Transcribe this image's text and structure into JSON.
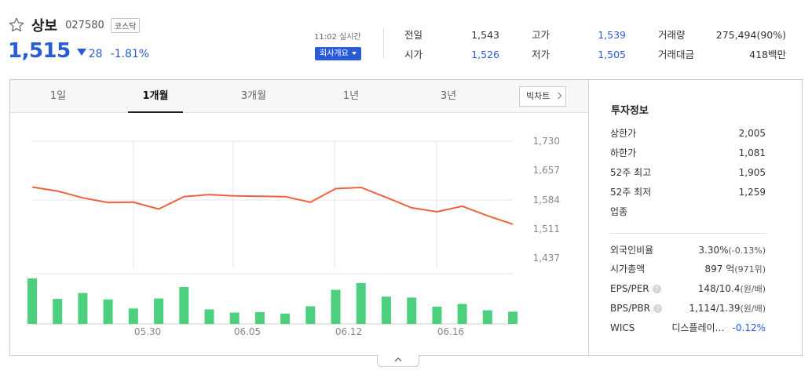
{
  "stock": {
    "name": "상보",
    "code": "027580",
    "market": "코스닥",
    "price": "1,515",
    "change": "28",
    "change_pct": "-1.81%",
    "realtime": "11:02 실시간",
    "company_btn": "회사개요"
  },
  "summary": {
    "prev_close_label": "전일",
    "prev_close": "1,543",
    "open_label": "시가",
    "open": "1,526",
    "high_label": "고가",
    "high": "1,539",
    "low_label": "저가",
    "low": "1,505",
    "volume_label": "거래량",
    "volume": "275,494(90%)",
    "amount_label": "거래대금",
    "amount": "418백만"
  },
  "tabs": [
    "1일",
    "1개월",
    "3개월",
    "1년",
    "3년"
  ],
  "active_tab": "1개월",
  "bigchart_label": "빅차트",
  "chart_data": {
    "type": "line",
    "title": "",
    "y_ticks": [
      "1,730",
      "1,657",
      "1,584",
      "1,511",
      "1,437"
    ],
    "ylim": [
      1437,
      1730
    ],
    "x_ticks": [
      "05.30",
      "06.05",
      "06.12",
      "06.16"
    ],
    "grid": true,
    "series": [
      {
        "values": [
          1615,
          1605,
          1588,
          1576,
          1577,
          1560,
          1591,
          1596,
          1593,
          1592,
          1591,
          1577,
          1611,
          1614,
          1589,
          1563,
          1553,
          1567,
          1543,
          1522
        ]
      }
    ],
    "volume_series": [
      {
        "values": [
          100,
          55,
          68,
          54,
          34,
          56,
          81,
          32,
          25,
          26,
          23,
          39,
          75,
          90,
          60,
          58,
          38,
          44,
          30,
          27
        ]
      }
    ],
    "up_color": "#f0613b",
    "bar_color": "#4cd07d"
  },
  "info": {
    "title": "투자정보",
    "rows": [
      {
        "label": "상한가",
        "value": "2,005"
      },
      {
        "label": "하한가",
        "value": "1,081"
      },
      {
        "label": "52주 최고",
        "value": "1,905"
      },
      {
        "label": "52주 최저",
        "value": "1,259"
      },
      {
        "label": "업종",
        "value": ""
      }
    ],
    "foreign_label": "외국인비율",
    "foreign_value": "3.30%",
    "foreign_change": "(-0.13%)",
    "mcap_label": "시가총액",
    "mcap_value": "897 억",
    "mcap_rank": "(971위)",
    "eps_label": "EPS/PER",
    "eps_value": "148/10.4",
    "eps_unit": "(원/배)",
    "bps_label": "BPS/PBR",
    "bps_value": "1,114/1.39",
    "bps_unit": "(원/배)",
    "wics_label": "WICS",
    "wics_value": "디스플레이…",
    "wics_change": "-0.12%"
  },
  "icons": {
    "favorite": "star-outline-icon",
    "help": "question-icon",
    "collapse": "chevron-up-icon"
  }
}
